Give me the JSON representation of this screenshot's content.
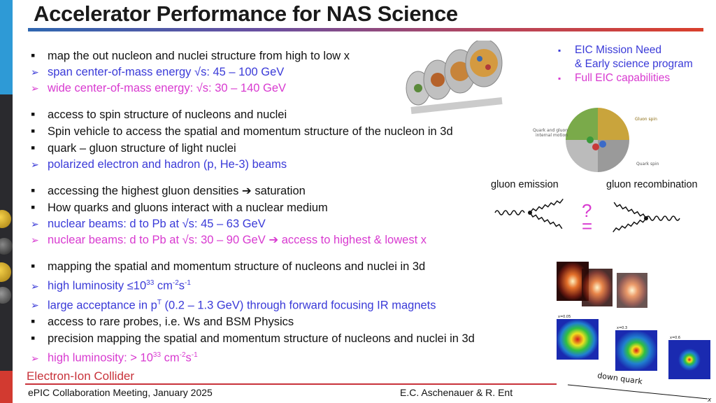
{
  "title": "Accelerator Performance for NAS Science",
  "groups": [
    [
      {
        "type": "square",
        "color": "black",
        "text": "map the out nucleon and nuclei structure from high to low x"
      },
      {
        "type": "arrow",
        "color": "blue",
        "text": "span center-of-mass energy √s: 45 – 100 GeV"
      },
      {
        "type": "arrow",
        "color": "pink",
        "text": "wide center-of-mass energy: √s: 30 – 140 GeV"
      }
    ],
    [
      {
        "type": "square",
        "color": "black",
        "text": "access to spin structure of nucleons and nuclei"
      },
      {
        "type": "square",
        "color": "black",
        "text": "Spin vehicle to access the spatial and momentum structure of the nucleon in 3d"
      },
      {
        "type": "square",
        "color": "black",
        "text": "quark – gluon structure of light nuclei"
      },
      {
        "type": "arrow",
        "color": "blue",
        "text": "polarized electron and hadron (p, He-3) beams"
      }
    ],
    [
      {
        "type": "square",
        "color": "black",
        "text": "accessing the highest gluon densities ➔ saturation"
      },
      {
        "type": "square",
        "color": "black",
        "text": "How quarks and gluons interact with a nuclear medium"
      },
      {
        "type": "arrow",
        "color": "blue",
        "text": "nuclear beams: d to Pb at √s: 45 – 63 GeV"
      },
      {
        "type": "arrow",
        "color": "pink",
        "text": "nuclear beams: d to Pb at √s: 30 – 90 GeV ➔ access to highest & lowest x"
      }
    ],
    [
      {
        "type": "square",
        "color": "black",
        "text": "mapping the spatial and momentum structure of nucleons and nuclei in 3d"
      },
      {
        "type": "arrow",
        "color": "blue",
        "parts": [
          "high luminosity ≤10",
          "33",
          " cm",
          "-2",
          "s",
          "-1"
        ]
      },
      {
        "type": "arrow",
        "color": "blue",
        "parts": [
          "large acceptance in p",
          "T",
          " (0.2 – 1.3 GeV) through forward focusing IR magnets"
        ]
      },
      {
        "type": "square",
        "color": "black",
        "text": "access to rare probes, i.e. Ws and BSM Physics"
      },
      {
        "type": "square",
        "color": "black",
        "text": "precision mapping the spatial and momentum structure of nucleons and nuclei in 3d"
      },
      {
        "type": "arrow",
        "color": "pink",
        "parts": [
          "high luminosity: > 10",
          "33",
          " cm",
          "-2",
          "s",
          "-1"
        ]
      }
    ]
  ],
  "eic_box": {
    "items": [
      {
        "text": "EIC Mission Need",
        "color": "blue"
      },
      {
        "text": "& Early science program",
        "color": "blue",
        "indent": true
      },
      {
        "text": "Full EIC capabilities",
        "color": "pink"
      }
    ]
  },
  "figures": {
    "spin_labels": {
      "gluon_spin": "Gluon spin",
      "quark_gluon": "Quark and gluon",
      "internal_motion": "internal motion",
      "quark_spin": "Quark spin"
    },
    "gluon_emission": "gluon emission",
    "gluon_recombination": "gluon recombination",
    "question_mark": "?",
    "equals": "=",
    "down_quark": "down quark",
    "x_axis": "x",
    "tomo_labels": [
      "x=0.05",
      "x=0.3",
      "x=0.6"
    ]
  },
  "footer": {
    "logo": "Electron-Ion Collider",
    "left": "ePIC Collaboration Meeting, January 2025",
    "right": "E.C. Aschenauer & R. Ent"
  },
  "colors": {
    "blue": "#3a3ad8",
    "pink": "#d83ad0",
    "accent_red": "#c8323a",
    "bar_blue": "#2e9ad6"
  }
}
